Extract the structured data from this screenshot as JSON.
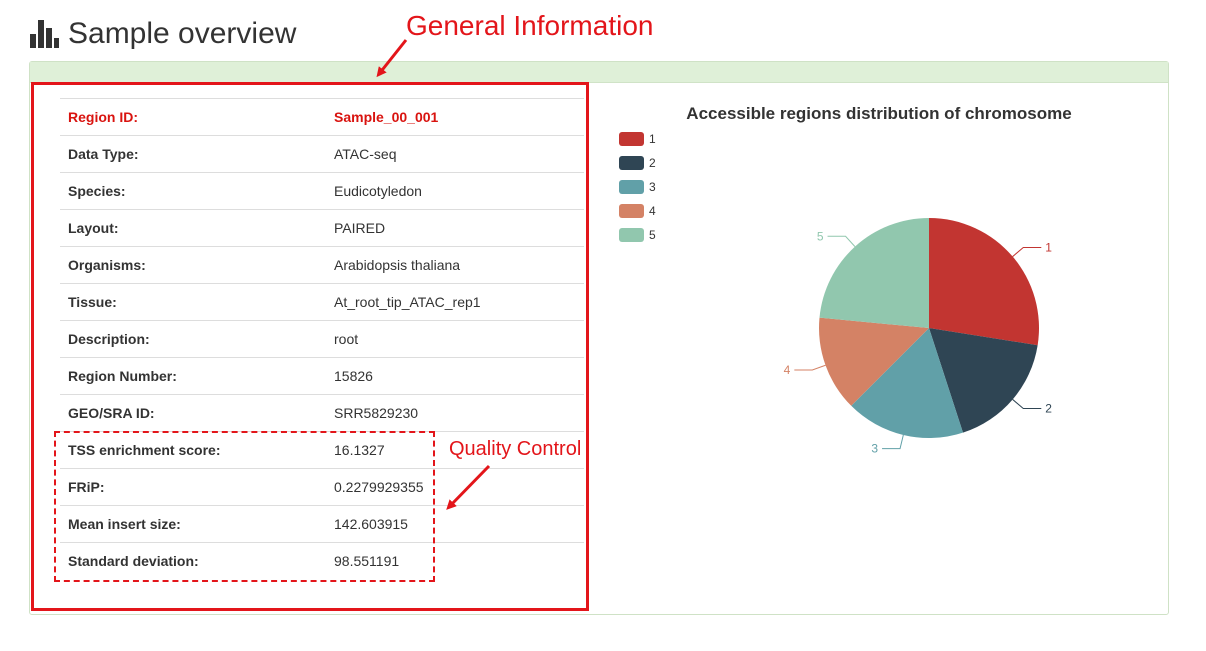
{
  "header": {
    "title": "Sample overview",
    "icon": "bar-chart-icon"
  },
  "info_rows": [
    {
      "label": "Region ID:",
      "value": "Sample_00_001"
    },
    {
      "label": "Data Type:",
      "value": "ATAC-seq"
    },
    {
      "label": "Species:",
      "value": "Eudicotyledon"
    },
    {
      "label": "Layout:",
      "value": "PAIRED"
    },
    {
      "label": "Organisms:",
      "value": "Arabidopsis thaliana"
    },
    {
      "label": "Tissue:",
      "value": "At_root_tip_ATAC_rep1"
    },
    {
      "label": "Description:",
      "value": "root"
    },
    {
      "label": "Region Number:",
      "value": "15826"
    },
    {
      "label": "GEO/SRA ID:",
      "value": "SRR5829230"
    },
    {
      "label": "TSS enrichment score:",
      "value": "16.1327"
    },
    {
      "label": "FRiP:",
      "value": "0.2279929355"
    },
    {
      "label": "Mean insert size:",
      "value": "142.603915"
    },
    {
      "label": "Standard deviation:",
      "value": "98.551191"
    }
  ],
  "annotations": {
    "general": "General Information",
    "qc": "Quality Control",
    "color": "#e3151a"
  },
  "colors": {
    "highlight_text": "#d9130f",
    "panel_heading": "#dff0d8"
  },
  "chart_data": {
    "type": "pie",
    "title": "Accessible regions distribution of chromosome",
    "legend_position": "top-left",
    "categories": [
      "1",
      "2",
      "3",
      "4",
      "5"
    ],
    "values": [
      27.5,
      17.5,
      17.5,
      14.0,
      23.5
    ],
    "colors": [
      "#c23531",
      "#2f4554",
      "#61a0a8",
      "#d48265",
      "#91c7ae"
    ]
  }
}
